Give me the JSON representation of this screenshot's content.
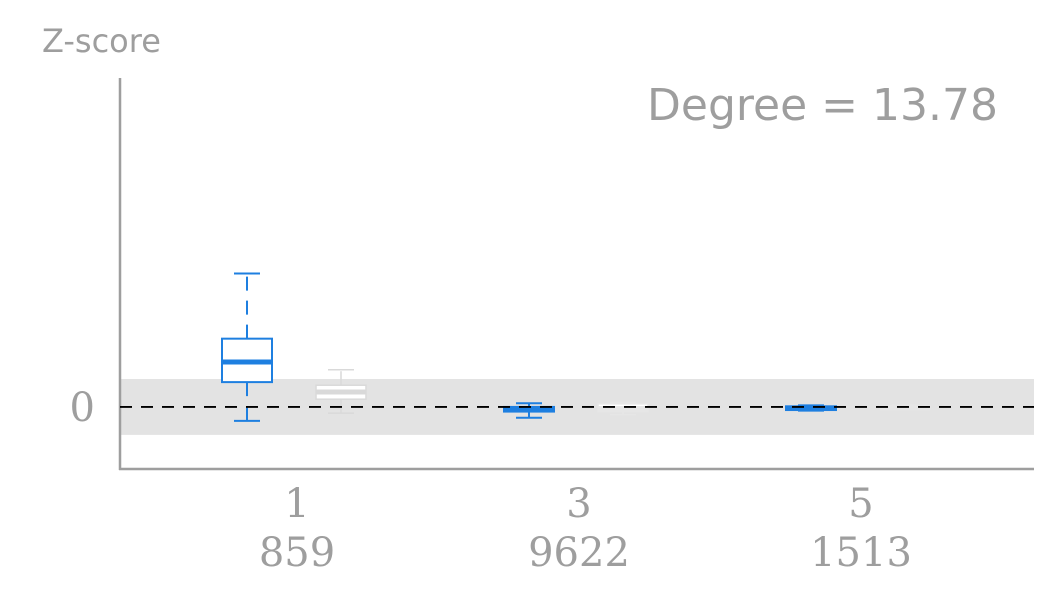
{
  "chart_data": {
    "type": "box",
    "ylabel": "Z-score",
    "annotation": "Degree = 13.78",
    "y_ticks": [
      {
        "value": 0,
        "label": "0"
      }
    ],
    "ylim": [
      -2.0,
      10.6
    ],
    "reference_band": [
      -0.9,
      0.9
    ],
    "reference_line": 0,
    "groups": [
      {
        "label": "1",
        "count": "859",
        "primary": {
          "whisker_low": -0.45,
          "q1": 0.8,
          "median": 1.45,
          "q3": 2.2,
          "whisker_high": 4.3,
          "color": "#1e7fe0"
        },
        "secondary": {
          "whisker_low": -0.2,
          "q1": 0.25,
          "median": 0.48,
          "q3": 0.7,
          "whisker_high": 1.2,
          "color": "#d9d9d9"
        }
      },
      {
        "label": "3",
        "count": "9622",
        "primary": {
          "whisker_low": -0.35,
          "q1": -0.15,
          "median": -0.08,
          "q3": 0.0,
          "whisker_high": 0.12,
          "color": "#1e7fe0"
        },
        "secondary": {
          "whisker_low": -0.25,
          "q1": -0.15,
          "median": -0.05,
          "q3": 0.1,
          "whisker_high": 0.15,
          "color": "#e6e6e6"
        }
      },
      {
        "label": "5",
        "count": "1513",
        "primary": {
          "whisker_low": -0.12,
          "q1": -0.1,
          "median": -0.05,
          "q3": 0.02,
          "whisker_high": 0.05,
          "color": "#1e7fe0"
        },
        "secondary": {
          "whisker_low": -0.08,
          "q1": -0.06,
          "median": -0.03,
          "q3": 0.03,
          "whisker_high": 0.06,
          "color": "#e6e6e6"
        }
      }
    ],
    "colors": {
      "axis": "#9e9e9e",
      "text": "#9e9e9e",
      "band": "#e3e3e3",
      "refline": "#000000"
    }
  }
}
